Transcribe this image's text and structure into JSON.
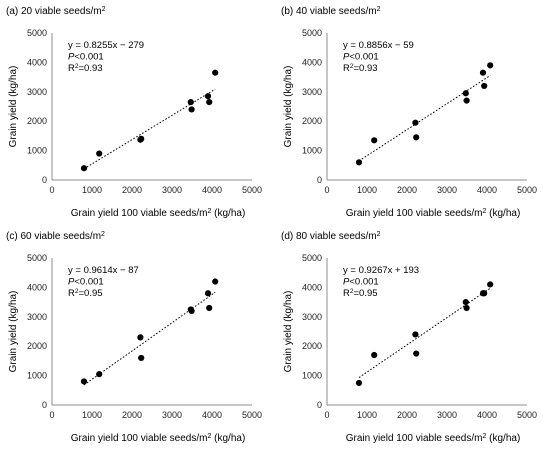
{
  "chart_data": [
    {
      "type": "scatter",
      "title": "(a) 20 viable seeds/m",
      "title_sup": "2",
      "xlabel": "Grain yield 100 viable seeds/m",
      "xlabel_sup": "2",
      "xlabel_tail": " (kg/ha)",
      "ylabel": "Grain yield (kg/ha)",
      "xlim": [
        0,
        5000
      ],
      "ylim": [
        0,
        5000
      ],
      "xticks": [
        "0",
        "1000",
        "2000",
        "3000",
        "4000",
        "5000"
      ],
      "yticks": [
        "0",
        "1000",
        "2000",
        "3000",
        "4000",
        "5000"
      ],
      "eq": "y = 0.8255x − 279",
      "p_label": "P",
      "p_value": "<0.001",
      "r2_label": "R",
      "r2_sup": "2",
      "r2_value": "=0.93",
      "trend": {
        "slope": 0.8255,
        "intercept": -279
      },
      "points": [
        {
          "x": 800,
          "y": 400
        },
        {
          "x": 1180,
          "y": 900
        },
        {
          "x": 2210,
          "y": 1370
        },
        {
          "x": 2230,
          "y": 1400
        },
        {
          "x": 3470,
          "y": 2650
        },
        {
          "x": 3490,
          "y": 2400
        },
        {
          "x": 3900,
          "y": 2850
        },
        {
          "x": 3930,
          "y": 2650
        },
        {
          "x": 4080,
          "y": 3650
        }
      ],
      "grid": false,
      "marker_color": "#000000",
      "trend_color": "#000000"
    },
    {
      "type": "scatter",
      "title": "(b) 40 viable seeds/m",
      "title_sup": "2",
      "xlabel": "Grain yield 100 viable seeds/m",
      "xlabel_sup": "2",
      "xlabel_tail": " (kg/ha)",
      "ylabel": "Grain yield (kg/ha)",
      "xlim": [
        0,
        5000
      ],
      "ylim": [
        0,
        5000
      ],
      "xticks": [
        "0",
        "1000",
        "2000",
        "3000",
        "4000",
        "5000"
      ],
      "yticks": [
        "0",
        "1000",
        "2000",
        "3000",
        "4000",
        "5000"
      ],
      "eq": "y = 0.8856x − 59",
      "p_label": "P",
      "p_value": "<0.001",
      "r2_label": "R",
      "r2_sup": "2",
      "r2_value": "=0.93",
      "trend": {
        "slope": 0.8856,
        "intercept": -59
      },
      "points": [
        {
          "x": 800,
          "y": 600
        },
        {
          "x": 1180,
          "y": 1350
        },
        {
          "x": 2210,
          "y": 1950
        },
        {
          "x": 2230,
          "y": 1450
        },
        {
          "x": 3470,
          "y": 2950
        },
        {
          "x": 3490,
          "y": 2700
        },
        {
          "x": 3900,
          "y": 3650
        },
        {
          "x": 3930,
          "y": 3200
        },
        {
          "x": 4080,
          "y": 3900
        }
      ],
      "grid": false,
      "marker_color": "#000000",
      "trend_color": "#000000"
    },
    {
      "type": "scatter",
      "title": "(c) 60 viable seeds/m",
      "title_sup": "2",
      "xlabel": "Grain yield 100 viable seeds/m",
      "xlabel_sup": "2",
      "xlabel_tail": " (kg/ha)",
      "ylabel": "Grain yield (kg/ha)",
      "xlim": [
        0,
        5000
      ],
      "ylim": [
        0,
        5000
      ],
      "xticks": [
        "0",
        "1000",
        "2000",
        "3000",
        "4000",
        "5000"
      ],
      "yticks": [
        "0",
        "1000",
        "2000",
        "3000",
        "4000",
        "5000"
      ],
      "eq": "y = 0.9614x − 87",
      "p_label": "P",
      "p_value": "<0.001",
      "r2_label": "R",
      "r2_sup": "2",
      "r2_value": "=0.95",
      "trend": {
        "slope": 0.9614,
        "intercept": -87
      },
      "points": [
        {
          "x": 800,
          "y": 800
        },
        {
          "x": 1180,
          "y": 1050
        },
        {
          "x": 2210,
          "y": 2300
        },
        {
          "x": 2230,
          "y": 1600
        },
        {
          "x": 3470,
          "y": 3250
        },
        {
          "x": 3490,
          "y": 3200
        },
        {
          "x": 3900,
          "y": 3800
        },
        {
          "x": 3930,
          "y": 3300
        },
        {
          "x": 4080,
          "y": 4200
        }
      ],
      "grid": false,
      "marker_color": "#000000",
      "trend_color": "#000000"
    },
    {
      "type": "scatter",
      "title": "(d) 80 viable seeds/m",
      "title_sup": "2",
      "xlabel": "Grain yield 100 viable seeds/m",
      "xlabel_sup": "2",
      "xlabel_tail": " (kg/ha)",
      "ylabel": "Grain yield (kg/ha)",
      "xlim": [
        0,
        5000
      ],
      "ylim": [
        0,
        5000
      ],
      "xticks": [
        "0",
        "1000",
        "2000",
        "3000",
        "4000",
        "5000"
      ],
      "yticks": [
        "0",
        "1000",
        "2000",
        "3000",
        "4000",
        "5000"
      ],
      "eq": "y = 0.9267x + 193",
      "p_label": "P",
      "p_value": "<0.001",
      "r2_label": "R",
      "r2_sup": "2",
      "r2_value": "=0.95",
      "trend": {
        "slope": 0.9267,
        "intercept": 193
      },
      "points": [
        {
          "x": 800,
          "y": 750
        },
        {
          "x": 1180,
          "y": 1700
        },
        {
          "x": 2210,
          "y": 2400
        },
        {
          "x": 2230,
          "y": 1750
        },
        {
          "x": 3470,
          "y": 3500
        },
        {
          "x": 3490,
          "y": 3300
        },
        {
          "x": 3900,
          "y": 3800
        },
        {
          "x": 3930,
          "y": 3800
        },
        {
          "x": 4080,
          "y": 4100
        }
      ],
      "grid": false,
      "marker_color": "#000000",
      "trend_color": "#000000"
    }
  ]
}
